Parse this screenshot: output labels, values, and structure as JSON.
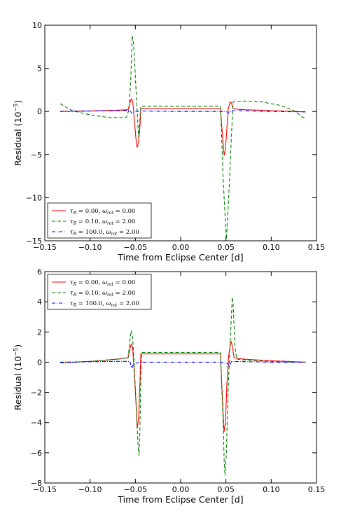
{
  "chart_data": [
    {
      "type": "line",
      "xlabel": "Time from Eclipse Center [d]",
      "ylabel": "Residual (10",
      "ylabel_exp": "−5",
      "ylabel_close": ")",
      "xlim": [
        -0.15,
        0.15
      ],
      "ylim": [
        -15,
        10
      ],
      "xticks": [
        -0.15,
        -0.1,
        -0.05,
        0.0,
        0.05,
        0.1,
        0.15
      ],
      "xtick_labels": [
        "−0.15",
        "−0.10",
        "−0.05",
        "0.00",
        "0.05",
        "0.10",
        "0.15"
      ],
      "yticks": [
        -15,
        -10,
        -5,
        0,
        5,
        10
      ],
      "ytick_labels": [
        "−15",
        "−10",
        "−5",
        "0",
        "5",
        "10"
      ],
      "grid": false,
      "legend_position": "lower-left",
      "series": [
        {
          "name": "τR = 0.00, ωrot = 0.00",
          "tau": "0.00",
          "omega": "0.00",
          "color": "#ff0000",
          "dash": "solid",
          "points": [
            [
              -0.133,
              0.0
            ],
            [
              -0.1,
              0.05
            ],
            [
              -0.07,
              0.15
            ],
            [
              -0.058,
              0.2
            ],
            [
              -0.056,
              1.0
            ],
            [
              -0.0545,
              1.45
            ],
            [
              -0.053,
              1.2
            ],
            [
              -0.0515,
              -0.5
            ],
            [
              -0.0495,
              -3.0
            ],
            [
              -0.048,
              -4.2
            ],
            [
              -0.0465,
              -3.6
            ],
            [
              -0.0448,
              -1.5
            ],
            [
              -0.044,
              0.35
            ],
            [
              -0.02,
              0.35
            ],
            [
              0.02,
              0.35
            ],
            [
              0.044,
              0.35
            ],
            [
              0.045,
              -1.2
            ],
            [
              0.047,
              -3.8
            ],
            [
              0.048,
              -5.1
            ],
            [
              0.0495,
              -4.4
            ],
            [
              0.051,
              -2.0
            ],
            [
              0.0525,
              0.2
            ],
            [
              0.0545,
              1.1
            ],
            [
              0.056,
              1.0
            ],
            [
              0.058,
              0.3
            ],
            [
              0.07,
              0.2
            ],
            [
              0.1,
              0.1
            ],
            [
              0.138,
              -0.05
            ]
          ]
        },
        {
          "name": "τR = 0.10, ωrot = 2.00",
          "tau": "0.10",
          "omega": "2.00",
          "color": "#008000",
          "dash": "dashed",
          "points": [
            [
              -0.133,
              0.9
            ],
            [
              -0.12,
              0.1
            ],
            [
              -0.1,
              -0.4
            ],
            [
              -0.08,
              -0.7
            ],
            [
              -0.06,
              -0.7
            ],
            [
              -0.057,
              0.2
            ],
            [
              -0.055,
              4.0
            ],
            [
              -0.0535,
              8.8
            ],
            [
              -0.052,
              8.0
            ],
            [
              -0.05,
              4.0
            ],
            [
              -0.048,
              0.0
            ],
            [
              -0.0465,
              -3.0
            ],
            [
              -0.045,
              -1.0
            ],
            [
              -0.044,
              0.6
            ],
            [
              0.0,
              0.6
            ],
            [
              0.044,
              0.6
            ],
            [
              0.045,
              -2.0
            ],
            [
              0.047,
              -8.0
            ],
            [
              0.049,
              -12.0
            ],
            [
              0.0505,
              -14.8
            ],
            [
              0.052,
              -12.0
            ],
            [
              0.054,
              -8.0
            ],
            [
              0.056,
              -3.0
            ],
            [
              0.058,
              1.1
            ],
            [
              0.07,
              1.2
            ],
            [
              0.09,
              1.1
            ],
            [
              0.11,
              0.7
            ],
            [
              0.125,
              0.1
            ],
            [
              0.138,
              -0.9
            ]
          ]
        },
        {
          "name": "τR = 100.0, ωrot = 2.00",
          "tau": "100.0",
          "omega": "2.00",
          "color": "#0000ff",
          "dash": "dashdot",
          "points": [
            [
              -0.133,
              0.0
            ],
            [
              -0.1,
              0.05
            ],
            [
              -0.07,
              0.08
            ],
            [
              -0.056,
              0.1
            ],
            [
              -0.054,
              -0.2
            ],
            [
              -0.05,
              0.0
            ],
            [
              -0.044,
              0.05
            ],
            [
              0.0,
              0.0
            ],
            [
              0.044,
              0.0
            ],
            [
              0.05,
              0.0
            ],
            [
              0.054,
              -0.2
            ],
            [
              0.056,
              0.1
            ],
            [
              0.1,
              0.0
            ],
            [
              0.138,
              -0.05
            ]
          ]
        }
      ]
    },
    {
      "type": "line",
      "xlabel": "Time from Eclipse Center [d]",
      "ylabel": "Residual (10",
      "ylabel_exp": "−5",
      "ylabel_close": ")",
      "xlim": [
        -0.15,
        0.15
      ],
      "ylim": [
        -8,
        6
      ],
      "xticks": [
        -0.15,
        -0.1,
        -0.05,
        0.0,
        0.05,
        0.1,
        0.15
      ],
      "xtick_labels": [
        "−0.15",
        "−0.10",
        "−0.05",
        "0.00",
        "0.05",
        "0.10",
        "0.15"
      ],
      "yticks": [
        -8,
        -6,
        -4,
        -2,
        0,
        2,
        4,
        6
      ],
      "ytick_labels": [
        "−8",
        "−6",
        "−4",
        "−2",
        "0",
        "2",
        "4",
        "6"
      ],
      "grid": false,
      "legend_position": "upper-left",
      "series": [
        {
          "name": "τR = 0.00, ωrot = 0.00",
          "tau": "0.00",
          "omega": "0.00",
          "color": "#ff0000",
          "dash": "solid",
          "points": [
            [
              -0.133,
              -0.05
            ],
            [
              -0.1,
              0.05
            ],
            [
              -0.07,
              0.2
            ],
            [
              -0.058,
              0.3
            ],
            [
              -0.056,
              0.9
            ],
            [
              -0.0545,
              1.2
            ],
            [
              -0.053,
              0.9
            ],
            [
              -0.051,
              -0.8
            ],
            [
              -0.049,
              -3.0
            ],
            [
              -0.048,
              -4.4
            ],
            [
              -0.0465,
              -3.8
            ],
            [
              -0.045,
              -1.5
            ],
            [
              -0.044,
              0.55
            ],
            [
              0.0,
              0.55
            ],
            [
              0.044,
              0.55
            ],
            [
              0.045,
              -1.0
            ],
            [
              0.047,
              -3.5
            ],
            [
              0.048,
              -4.6
            ],
            [
              0.0495,
              -4.0
            ],
            [
              0.051,
              -1.5
            ],
            [
              0.053,
              0.4
            ],
            [
              0.0555,
              1.4
            ],
            [
              0.057,
              1.1
            ],
            [
              0.059,
              0.3
            ],
            [
              0.07,
              0.2
            ],
            [
              0.1,
              0.1
            ],
            [
              0.138,
              0.0
            ]
          ]
        },
        {
          "name": "τR = 0.10, ωrot = 2.00",
          "tau": "0.10",
          "omega": "2.00",
          "color": "#008000",
          "dash": "dashed",
          "points": [
            [
              -0.133,
              -0.05
            ],
            [
              -0.1,
              0.05
            ],
            [
              -0.07,
              0.2
            ],
            [
              -0.058,
              0.3
            ],
            [
              -0.056,
              1.5
            ],
            [
              -0.0545,
              2.1
            ],
            [
              -0.053,
              1.6
            ],
            [
              -0.051,
              -0.5
            ],
            [
              -0.049,
              -3.0
            ],
            [
              -0.047,
              -5.5
            ],
            [
              -0.046,
              -6.2
            ],
            [
              -0.045,
              -4.5
            ],
            [
              -0.044,
              -1.0
            ],
            [
              -0.043,
              0.65
            ],
            [
              0.0,
              0.65
            ],
            [
              0.044,
              0.65
            ],
            [
              0.045,
              -1.0
            ],
            [
              0.047,
              -4.0
            ],
            [
              0.048,
              -6.5
            ],
            [
              0.049,
              -7.5
            ],
            [
              0.0505,
              -6.0
            ],
            [
              0.052,
              -2.5
            ],
            [
              0.054,
              0.5
            ],
            [
              0.056,
              3.0
            ],
            [
              0.057,
              4.3
            ],
            [
              0.058,
              3.8
            ],
            [
              0.06,
              1.0
            ],
            [
              0.062,
              0.2
            ],
            [
              0.08,
              0.1
            ],
            [
              0.1,
              0.05
            ],
            [
              0.138,
              0.0
            ]
          ]
        },
        {
          "name": "τR = 100.0, ωrot = 2.00",
          "tau": "100.0",
          "omega": "2.00",
          "color": "#0000ff",
          "dash": "dashdot",
          "points": [
            [
              -0.133,
              0.0
            ],
            [
              -0.1,
              0.03
            ],
            [
              -0.07,
              0.05
            ],
            [
              -0.056,
              0.05
            ],
            [
              -0.054,
              -0.4
            ],
            [
              -0.052,
              -0.1
            ],
            [
              -0.044,
              0.0
            ],
            [
              0.0,
              0.0
            ],
            [
              0.044,
              0.0
            ],
            [
              0.052,
              -0.1
            ],
            [
              0.054,
              -0.3
            ],
            [
              0.056,
              0.05
            ],
            [
              0.1,
              0.0
            ],
            [
              0.138,
              0.0
            ]
          ]
        }
      ]
    }
  ]
}
